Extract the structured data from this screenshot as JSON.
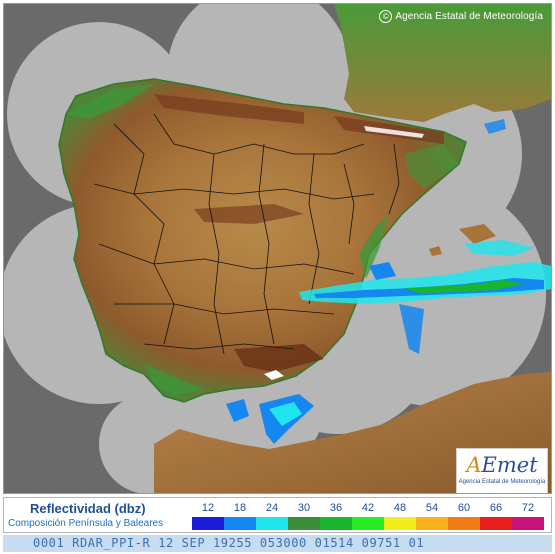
{
  "map": {
    "copyright": "Agencia Estatal de Meteorología",
    "copyright_symbol": "©",
    "colors": {
      "outside_coverage": "#6a6a6a",
      "radar_coverage": "#b6b6b6",
      "sea_in_coverage": "#c8c8c8",
      "lowland": "#2f8f3a",
      "plateau": "#b07a3c",
      "mountain": "#8a4a26",
      "snow": "#ffffff",
      "province_border": "#111111"
    }
  },
  "logo": {
    "brand_a": "A",
    "brand_b": "Emet",
    "tagline": "Agencia Estatal de Meteorología"
  },
  "legend": {
    "title": "Reflectividad (dbz)",
    "subtitle": "Composición Península y Baleares",
    "ticks": [
      "12",
      "18",
      "24",
      "30",
      "36",
      "42",
      "48",
      "54",
      "60",
      "66",
      "72"
    ],
    "colors": [
      "#1c1cd9",
      "#1487f0",
      "#1fe6ee",
      "#3a8f3a",
      "#19b52a",
      "#27ee22",
      "#f2ee1d",
      "#f7b21c",
      "#f27a18",
      "#ea1d1d",
      "#c8117a"
    ]
  },
  "status": {
    "text": "0001 RDAR_PPI-R   12 SEP 19255 053000 01514 09751 01"
  }
}
